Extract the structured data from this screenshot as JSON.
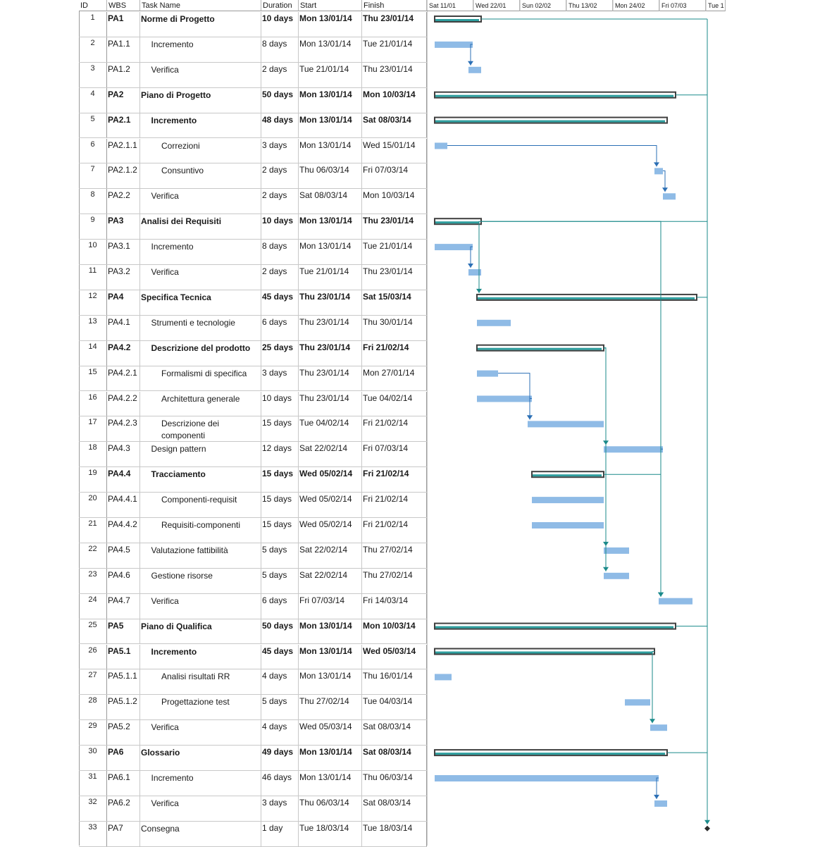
{
  "headers": {
    "id": "ID",
    "wbs": "WBS",
    "name": "Task Name",
    "duration": "Duration",
    "start": "Start",
    "finish": "Finish"
  },
  "timeline": [
    "Sat 11/01",
    "Wed 22/01",
    "Sun 02/02",
    "Thu 13/02",
    "Mon 24/02",
    "Fri 07/03",
    "Tue 1"
  ],
  "colors": {
    "summary_outline": "#404040",
    "summary_fill": "#2e9e9e",
    "task_bar": "#8fbbe6",
    "link_teal": "#1a8a8a",
    "link_blue": "#2b6fb5"
  },
  "tasks": [
    {
      "id": "1",
      "wbs": "PA1",
      "name": "Norme di Progetto",
      "duration": "10 days",
      "start": "Mon 13/01/14",
      "finish": "Thu 23/01/14",
      "level": 0,
      "summary": true
    },
    {
      "id": "2",
      "wbs": "PA1.1",
      "name": "Incremento",
      "duration": "8 days",
      "start": "Mon 13/01/14",
      "finish": "Tue 21/01/14",
      "level": 1,
      "summary": false
    },
    {
      "id": "3",
      "wbs": "PA1.2",
      "name": "Verifica",
      "duration": "2 days",
      "start": "Tue 21/01/14",
      "finish": "Thu 23/01/14",
      "level": 1,
      "summary": false
    },
    {
      "id": "4",
      "wbs": "PA2",
      "name": "Piano di Progetto",
      "duration": "50 days",
      "start": "Mon 13/01/14",
      "finish": "Mon 10/03/14",
      "level": 0,
      "summary": true
    },
    {
      "id": "5",
      "wbs": "PA2.1",
      "name": "Incremento",
      "duration": "48 days",
      "start": "Mon 13/01/14",
      "finish": "Sat 08/03/14",
      "level": 1,
      "summary": true
    },
    {
      "id": "6",
      "wbs": "PA2.1.1",
      "name": "Correzioni",
      "duration": "3 days",
      "start": "Mon 13/01/14",
      "finish": "Wed 15/01/14",
      "level": 2,
      "summary": false
    },
    {
      "id": "7",
      "wbs": "PA2.1.2",
      "name": "Consuntivo",
      "duration": "2 days",
      "start": "Thu 06/03/14",
      "finish": "Fri 07/03/14",
      "level": 2,
      "summary": false
    },
    {
      "id": "8",
      "wbs": "PA2.2",
      "name": "Verifica",
      "duration": "2 days",
      "start": "Sat 08/03/14",
      "finish": "Mon 10/03/14",
      "level": 1,
      "summary": false
    },
    {
      "id": "9",
      "wbs": "PA3",
      "name": "Analisi dei Requisiti",
      "duration": "10 days",
      "start": "Mon 13/01/14",
      "finish": "Thu 23/01/14",
      "level": 0,
      "summary": true
    },
    {
      "id": "10",
      "wbs": "PA3.1",
      "name": "Incremento",
      "duration": "8 days",
      "start": "Mon 13/01/14",
      "finish": "Tue 21/01/14",
      "level": 1,
      "summary": false
    },
    {
      "id": "11",
      "wbs": "PA3.2",
      "name": "Verifica",
      "duration": "2 days",
      "start": "Tue 21/01/14",
      "finish": "Thu 23/01/14",
      "level": 1,
      "summary": false
    },
    {
      "id": "12",
      "wbs": "PA4",
      "name": "Specifica Tecnica",
      "duration": "45 days",
      "start": "Thu 23/01/14",
      "finish": "Sat 15/03/14",
      "level": 0,
      "summary": true
    },
    {
      "id": "13",
      "wbs": "PA4.1",
      "name": "Strumenti e tecnologie",
      "duration": "6 days",
      "start": "Thu 23/01/14",
      "finish": "Thu 30/01/14",
      "level": 1,
      "summary": false
    },
    {
      "id": "14",
      "wbs": "PA4.2",
      "name": "Descrizione del prodotto",
      "duration": "25 days",
      "start": "Thu 23/01/14",
      "finish": "Fri 21/02/14",
      "level": 1,
      "summary": true
    },
    {
      "id": "15",
      "wbs": "PA4.2.1",
      "name": "Formalismi di specifica",
      "duration": "3 days",
      "start": "Thu 23/01/14",
      "finish": "Mon 27/01/14",
      "level": 2,
      "summary": false
    },
    {
      "id": "16",
      "wbs": "PA4.2.2",
      "name": "Architettura generale",
      "duration": "10 days",
      "start": "Thu 23/01/14",
      "finish": "Tue 04/02/14",
      "level": 2,
      "summary": false
    },
    {
      "id": "17",
      "wbs": "PA4.2.3",
      "name": "Descrizione dei componenti",
      "duration": "15 days",
      "start": "Tue 04/02/14",
      "finish": "Fri 21/02/14",
      "level": 2,
      "summary": false
    },
    {
      "id": "18",
      "wbs": "PA4.3",
      "name": "Design pattern",
      "duration": "12 days",
      "start": "Sat 22/02/14",
      "finish": "Fri 07/03/14",
      "level": 1,
      "summary": false
    },
    {
      "id": "19",
      "wbs": "PA4.4",
      "name": "Tracciamento",
      "duration": "15 days",
      "start": "Wed 05/02/14",
      "finish": "Fri 21/02/14",
      "level": 1,
      "summary": true
    },
    {
      "id": "20",
      "wbs": "PA4.4.1",
      "name": "Componenti-requisit",
      "duration": "15 days",
      "start": "Wed 05/02/14",
      "finish": "Fri 21/02/14",
      "level": 2,
      "summary": false
    },
    {
      "id": "21",
      "wbs": "PA4.4.2",
      "name": "Requisiti-componenti",
      "duration": "15 days",
      "start": "Wed 05/02/14",
      "finish": "Fri 21/02/14",
      "level": 2,
      "summary": false
    },
    {
      "id": "22",
      "wbs": "PA4.5",
      "name": "Valutazione fattibilità",
      "duration": "5 days",
      "start": "Sat 22/02/14",
      "finish": "Thu 27/02/14",
      "level": 1,
      "summary": false
    },
    {
      "id": "23",
      "wbs": "PA4.6",
      "name": "Gestione risorse",
      "duration": "5 days",
      "start": "Sat 22/02/14",
      "finish": "Thu 27/02/14",
      "level": 1,
      "summary": false
    },
    {
      "id": "24",
      "wbs": "PA4.7",
      "name": "Verifica",
      "duration": "6 days",
      "start": "Fri 07/03/14",
      "finish": "Fri 14/03/14",
      "level": 1,
      "summary": false
    },
    {
      "id": "25",
      "wbs": "PA5",
      "name": "Piano di Qualifica",
      "duration": "50 days",
      "start": "Mon 13/01/14",
      "finish": "Mon 10/03/14",
      "level": 0,
      "summary": true
    },
    {
      "id": "26",
      "wbs": "PA5.1",
      "name": "Incremento",
      "duration": "45 days",
      "start": "Mon 13/01/14",
      "finish": "Wed 05/03/14",
      "level": 1,
      "summary": true
    },
    {
      "id": "27",
      "wbs": "PA5.1.1",
      "name": "Analisi risultati RR",
      "duration": "4 days",
      "start": "Mon 13/01/14",
      "finish": "Thu 16/01/14",
      "level": 2,
      "summary": false
    },
    {
      "id": "28",
      "wbs": "PA5.1.2",
      "name": "Progettazione test",
      "duration": "5 days",
      "start": "Thu 27/02/14",
      "finish": "Tue 04/03/14",
      "level": 2,
      "summary": false
    },
    {
      "id": "29",
      "wbs": "PA5.2",
      "name": "Verifica",
      "duration": "4 days",
      "start": "Wed 05/03/14",
      "finish": "Sat 08/03/14",
      "level": 1,
      "summary": false
    },
    {
      "id": "30",
      "wbs": "PA6",
      "name": "Glossario",
      "duration": "49 days",
      "start": "Mon 13/01/14",
      "finish": "Sat 08/03/14",
      "level": 0,
      "summary": true
    },
    {
      "id": "31",
      "wbs": "PA6.1",
      "name": "Incremento",
      "duration": "46 days",
      "start": "Mon 13/01/14",
      "finish": "Thu 06/03/14",
      "level": 1,
      "summary": false
    },
    {
      "id": "32",
      "wbs": "PA6.2",
      "name": "Verifica",
      "duration": "3 days",
      "start": "Thu 06/03/14",
      "finish": "Sat 08/03/14",
      "level": 1,
      "summary": false
    },
    {
      "id": "33",
      "wbs": "PA7",
      "name": "Consegna",
      "duration": "1 day",
      "start": "Tue 18/03/14",
      "finish": "Tue 18/03/14",
      "level": 0,
      "summary": false,
      "milestone": true
    }
  ]
}
